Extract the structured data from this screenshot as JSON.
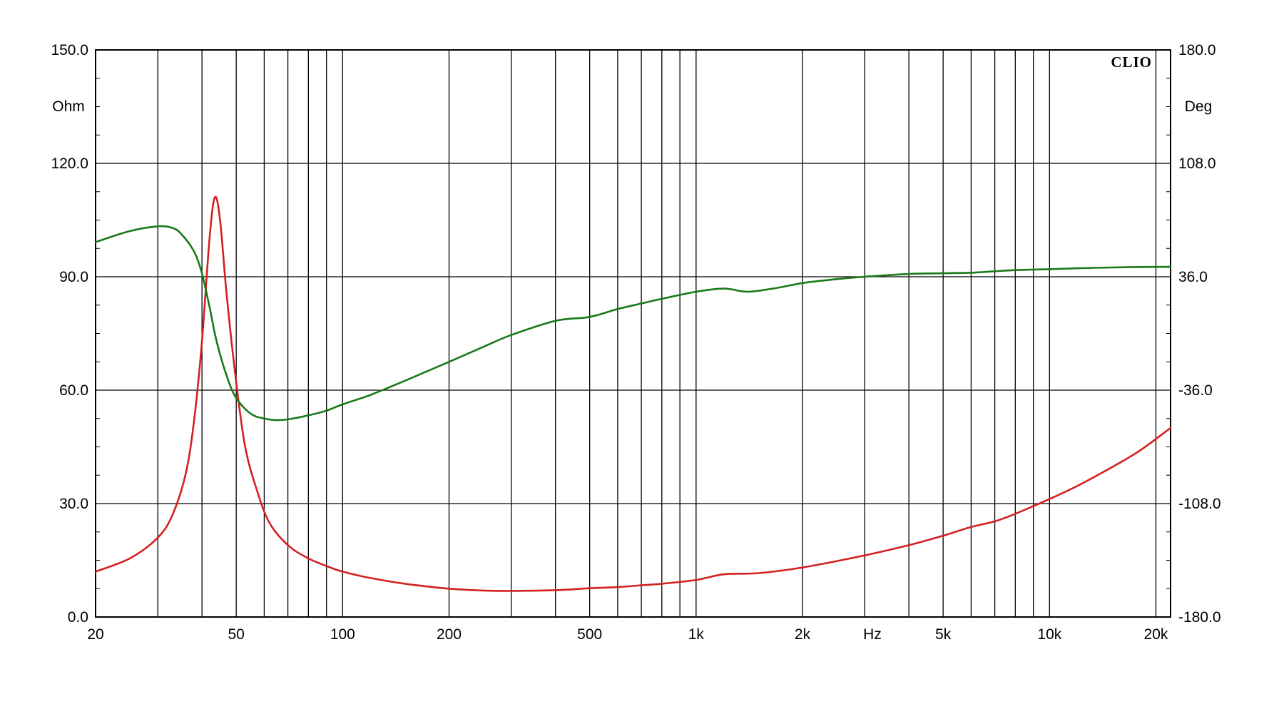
{
  "chart_data": {
    "type": "line",
    "brand": "CLIO",
    "x_scale": "log",
    "xlim": [
      20,
      22000
    ],
    "x_unit_label": "Hz",
    "x_ticks": [
      {
        "value": 20,
        "label": "20"
      },
      {
        "value": 50,
        "label": "50"
      },
      {
        "value": 100,
        "label": "100"
      },
      {
        "value": 200,
        "label": "200"
      },
      {
        "value": 500,
        "label": "500"
      },
      {
        "value": 1000,
        "label": "1k"
      },
      {
        "value": 2000,
        "label": "2k"
      },
      {
        "value": 5000,
        "label": "5k"
      },
      {
        "value": 10000,
        "label": "10k"
      },
      {
        "value": 20000,
        "label": "20k"
      }
    ],
    "x_gridlines": [
      30,
      40,
      50,
      60,
      70,
      80,
      90,
      100,
      200,
      300,
      400,
      500,
      600,
      700,
      800,
      900,
      1000,
      2000,
      3000,
      4000,
      5000,
      6000,
      7000,
      8000,
      9000,
      10000,
      20000
    ],
    "y_left": {
      "unit_label": "Ohm",
      "lim": [
        0,
        150
      ],
      "ticks": [
        {
          "value": 0,
          "label": "0.0"
        },
        {
          "value": 30,
          "label": "30.0"
        },
        {
          "value": 60,
          "label": "60.0"
        },
        {
          "value": 90,
          "label": "90.0"
        },
        {
          "value": 120,
          "label": "120.0"
        },
        {
          "value": 150,
          "label": "150.0"
        }
      ]
    },
    "y_right": {
      "unit_label": "Deg",
      "lim": [
        -180,
        180
      ],
      "ticks": [
        {
          "value": -180,
          "label": "-180.0"
        },
        {
          "value": -108,
          "label": "-108.0"
        },
        {
          "value": -36,
          "label": "-36.0"
        },
        {
          "value": 36,
          "label": "36.0"
        },
        {
          "value": 108,
          "label": "108.0"
        },
        {
          "value": 180,
          "label": "180.0"
        }
      ]
    },
    "grid": true,
    "series": [
      {
        "axis": "left",
        "color": "#d42020",
        "points": [
          [
            20,
            12
          ],
          [
            25,
            15.5
          ],
          [
            30,
            21
          ],
          [
            33,
            27
          ],
          [
            36,
            38
          ],
          [
            38,
            52
          ],
          [
            40,
            73
          ],
          [
            42,
            100
          ],
          [
            43.5,
            111
          ],
          [
            45,
            105
          ],
          [
            47,
            85
          ],
          [
            50,
            62
          ],
          [
            53,
            45
          ],
          [
            57,
            34
          ],
          [
            62,
            25
          ],
          [
            70,
            19
          ],
          [
            80,
            15.5
          ],
          [
            90,
            13.5
          ],
          [
            100,
            12
          ],
          [
            120,
            10.3
          ],
          [
            150,
            8.8
          ],
          [
            200,
            7.5
          ],
          [
            250,
            7
          ],
          [
            300,
            6.9
          ],
          [
            400,
            7.1
          ],
          [
            500,
            7.6
          ],
          [
            600,
            7.9
          ],
          [
            700,
            8.4
          ],
          [
            800,
            8.8
          ],
          [
            1000,
            9.8
          ],
          [
            1200,
            11.3
          ],
          [
            1500,
            11.6
          ],
          [
            2000,
            13.1
          ],
          [
            3000,
            16.3
          ],
          [
            4000,
            19
          ],
          [
            5000,
            21.5
          ],
          [
            6000,
            23.8
          ],
          [
            7000,
            25.3
          ],
          [
            8000,
            27.3
          ],
          [
            10000,
            31.2
          ],
          [
            12000,
            34.7
          ],
          [
            15000,
            39.6
          ],
          [
            18000,
            44
          ],
          [
            22000,
            50
          ]
        ]
      },
      {
        "axis": "right",
        "color": "#1a7a1a",
        "points": [
          [
            20,
            58
          ],
          [
            25,
            65
          ],
          [
            30,
            68
          ],
          [
            33,
            67
          ],
          [
            35,
            63
          ],
          [
            38,
            52
          ],
          [
            40,
            38
          ],
          [
            42,
            17
          ],
          [
            44,
            -5
          ],
          [
            47,
            -27
          ],
          [
            50,
            -41
          ],
          [
            55,
            -51
          ],
          [
            60,
            -54
          ],
          [
            65,
            -55
          ],
          [
            70,
            -54.5
          ],
          [
            80,
            -52
          ],
          [
            90,
            -49
          ],
          [
            100,
            -45
          ],
          [
            120,
            -39
          ],
          [
            150,
            -30
          ],
          [
            200,
            -18
          ],
          [
            250,
            -8.5
          ],
          [
            300,
            -1
          ],
          [
            400,
            8
          ],
          [
            500,
            10.5
          ],
          [
            600,
            15.5
          ],
          [
            700,
            19
          ],
          [
            800,
            22
          ],
          [
            1000,
            26.5
          ],
          [
            1200,
            28.5
          ],
          [
            1400,
            26.5
          ],
          [
            1700,
            29
          ],
          [
            2000,
            32
          ],
          [
            2500,
            34.5
          ],
          [
            3000,
            36
          ],
          [
            4000,
            37.8
          ],
          [
            5000,
            38.2
          ],
          [
            6000,
            38.6
          ],
          [
            7000,
            39.5
          ],
          [
            8000,
            40.2
          ],
          [
            10000,
            40.8
          ],
          [
            12000,
            41.4
          ],
          [
            15000,
            41.9
          ],
          [
            18000,
            42.2
          ],
          [
            22000,
            42.3
          ]
        ]
      }
    ]
  }
}
